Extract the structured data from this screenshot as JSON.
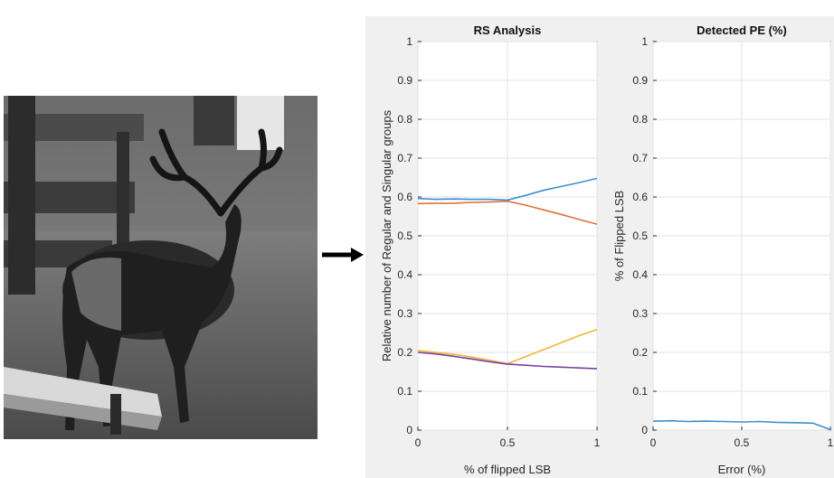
{
  "image": {
    "description_icon": "deer-photo"
  },
  "arrow_icon": "right-arrow-icon",
  "chart_data": [
    {
      "type": "line",
      "title": "RS Analysis",
      "xlabel": "% of flipped LSB",
      "ylabel": "Relative number of Regular and Singular groups",
      "xlim": [
        0,
        1
      ],
      "ylim": [
        0,
        1
      ],
      "xticks": [
        "0",
        "0.5",
        "1"
      ],
      "yticks": [
        "0",
        "0.1",
        "0.2",
        "0.3",
        "0.4",
        "0.5",
        "0.6",
        "0.7",
        "0.8",
        "0.9",
        "1"
      ],
      "grid": true,
      "series": [
        {
          "color": "#3d8fd1",
          "x": [
            0,
            0.1,
            0.2,
            0.3,
            0.4,
            0.5,
            0.6,
            0.7,
            0.8,
            0.9,
            1.0
          ],
          "y": [
            0.596,
            0.594,
            0.595,
            0.594,
            0.594,
            0.592,
            0.604,
            0.617,
            0.627,
            0.637,
            0.648
          ]
        },
        {
          "color": "#e0703f",
          "x": [
            0,
            0.1,
            0.2,
            0.3,
            0.4,
            0.5,
            0.6,
            0.7,
            0.8,
            0.9,
            1.0
          ],
          "y": [
            0.583,
            0.584,
            0.584,
            0.586,
            0.587,
            0.589,
            0.579,
            0.567,
            0.555,
            0.542,
            0.53
          ]
        },
        {
          "color": "#f2b53a",
          "x": [
            0,
            0.1,
            0.2,
            0.3,
            0.4,
            0.5,
            0.6,
            0.7,
            0.8,
            0.9,
            1.0
          ],
          "y": [
            0.205,
            0.2,
            0.195,
            0.188,
            0.18,
            0.171,
            0.189,
            0.207,
            0.225,
            0.243,
            0.259
          ]
        },
        {
          "color": "#7a3f9d",
          "x": [
            0,
            0.1,
            0.2,
            0.3,
            0.4,
            0.5,
            0.6,
            0.7,
            0.8,
            0.9,
            1.0
          ],
          "y": [
            0.2,
            0.196,
            0.19,
            0.183,
            0.176,
            0.17,
            0.167,
            0.164,
            0.162,
            0.16,
            0.158
          ]
        }
      ]
    },
    {
      "type": "line",
      "title": "Detected PE (%)",
      "xlabel": "Error (%)",
      "ylabel": "% of Flipped LSB",
      "xlim": [
        0,
        1
      ],
      "ylim": [
        0,
        1
      ],
      "xticks": [
        "0",
        "0.5",
        "1"
      ],
      "yticks": [
        "0",
        "0.1",
        "0.2",
        "0.3",
        "0.4",
        "0.5",
        "0.6",
        "0.7",
        "0.8",
        "0.9",
        "1"
      ],
      "grid": true,
      "series": [
        {
          "color": "#3d8fd1",
          "x": [
            0,
            0.1,
            0.2,
            0.3,
            0.4,
            0.5,
            0.6,
            0.7,
            0.8,
            0.9,
            0.95,
            1.0
          ],
          "y": [
            0.023,
            0.024,
            0.022,
            0.023,
            0.022,
            0.021,
            0.022,
            0.02,
            0.019,
            0.018,
            0.01,
            0.001
          ]
        }
      ]
    }
  ]
}
